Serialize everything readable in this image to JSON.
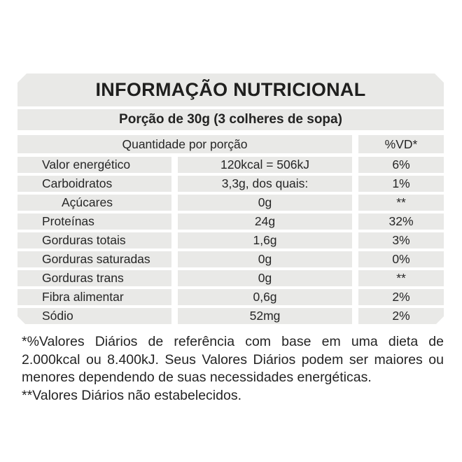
{
  "label": {
    "title": "INFORMAÇÃO NUTRICIONAL",
    "portion": "Porção de 30g (3 colheres de sopa)",
    "header": {
      "quantity": "Quantidade por porção",
      "dv": "%VD*"
    },
    "rows": [
      {
        "name": "Valor energético",
        "amount": "120kcal = 506kJ",
        "dv": "6%"
      },
      {
        "name": "Carboidratos",
        "amount": "3,3g, dos quais:",
        "dv": "1%"
      },
      {
        "name": "Açúcares",
        "amount": "0g",
        "dv": "**"
      },
      {
        "name": "Proteínas",
        "amount": "24g",
        "dv": "32%"
      },
      {
        "name": "Gorduras totais",
        "amount": "1,6g",
        "dv": "3%"
      },
      {
        "name": "Gorduras saturadas",
        "amount": "0g",
        "dv": "0%"
      },
      {
        "name": "Gorduras trans",
        "amount": "0g",
        "dv": "**"
      },
      {
        "name": "Fibra alimentar",
        "amount": "0,6g",
        "dv": "2%"
      },
      {
        "name": "Sódio",
        "amount": "52mg",
        "dv": "2%"
      }
    ],
    "footnotes": {
      "daily_values": "*%Valores Diários de referência com base em uma dieta de 2.000kcal ou 8.400kJ. Seus Valores Diários podem ser maiores ou menores dependendo de suas necessidades energéticas.",
      "not_established": "**Valores Diários não estabelecidos."
    },
    "colors": {
      "band_gray": "#e9e9e7",
      "text": "#262626",
      "background": "#ffffff"
    }
  }
}
